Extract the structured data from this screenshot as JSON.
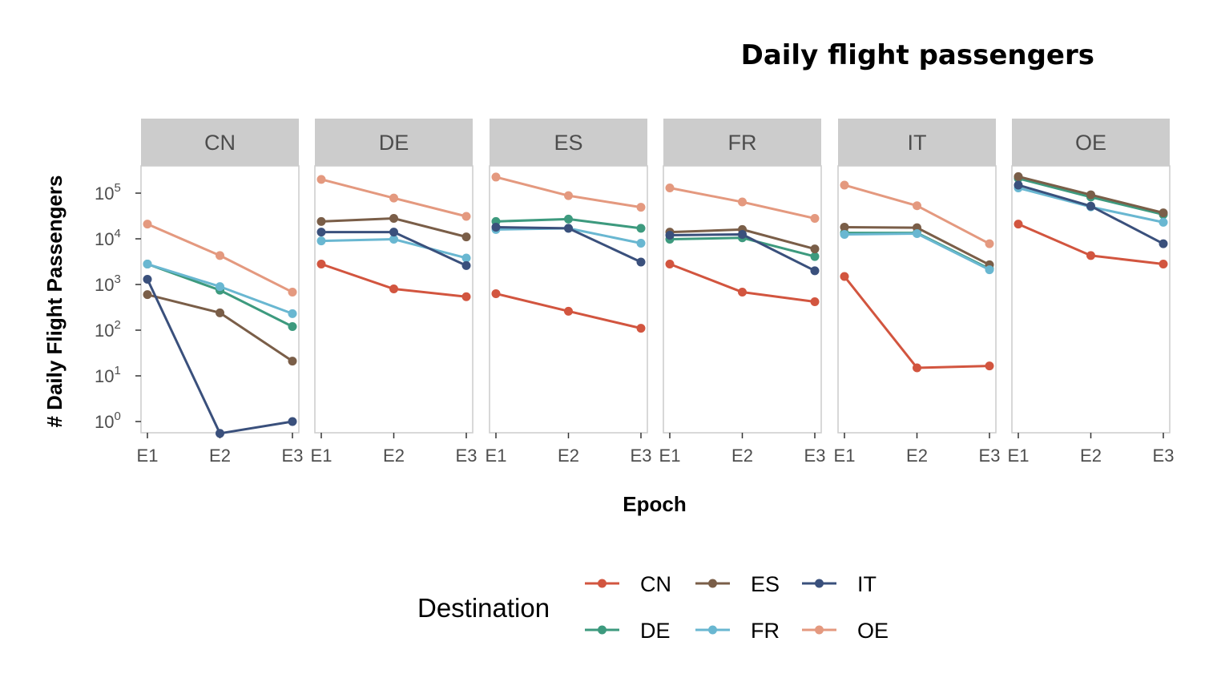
{
  "chart_data": {
    "type": "line",
    "title": "Daily flight passengers",
    "xlabel": "Epoch",
    "ylabel": "# Daily Flight Passengers",
    "y_scale": "log10",
    "ylim": [
      0.55,
      500000
    ],
    "y_ticks": [
      1,
      10,
      100,
      1000,
      10000,
      100000
    ],
    "y_tick_base": "10",
    "y_tick_exponents": [
      "0",
      "1",
      "2",
      "3",
      "4",
      "5"
    ],
    "categories": [
      "E1",
      "E2",
      "E3"
    ],
    "legend_title": "Destination",
    "legend_position": "bottom",
    "grid": false,
    "colors": {
      "CN": "#d2553f",
      "DE": "#3d9a7e",
      "ES": "#7a5e48",
      "FR": "#69b7d1",
      "IT": "#3a507c",
      "OE": "#e4997f"
    },
    "legend_order": [
      "CN",
      "DE",
      "ES",
      "FR",
      "IT",
      "OE"
    ],
    "panels": [
      {
        "name": "CN",
        "series": [
          {
            "name": "CN",
            "values": [
              null,
              null,
              null
            ]
          },
          {
            "name": "DE",
            "values": [
              2800,
              750,
              120
            ]
          },
          {
            "name": "ES",
            "values": [
              600,
              240,
              21
            ]
          },
          {
            "name": "FR",
            "values": [
              2800,
              900,
              230
            ]
          },
          {
            "name": "IT",
            "values": [
              1300,
              0.55,
              1.0
            ]
          },
          {
            "name": "OE",
            "values": [
              21000,
              4300,
              680
            ]
          }
        ]
      },
      {
        "name": "DE",
        "series": [
          {
            "name": "CN",
            "values": [
              2800,
              800,
              540
            ]
          },
          {
            "name": "DE",
            "values": [
              null,
              null,
              null
            ]
          },
          {
            "name": "ES",
            "values": [
              24000,
              28000,
              11000
            ]
          },
          {
            "name": "FR",
            "values": [
              9000,
              9800,
              3800
            ]
          },
          {
            "name": "IT",
            "values": [
              14000,
              14000,
              2600
            ]
          },
          {
            "name": "OE",
            "values": [
              200000,
              78000,
              31000
            ]
          }
        ]
      },
      {
        "name": "ES",
        "series": [
          {
            "name": "CN",
            "values": [
              630,
              260,
              110
            ]
          },
          {
            "name": "DE",
            "values": [
              24000,
              27000,
              17000
            ]
          },
          {
            "name": "ES",
            "values": [
              null,
              null,
              null
            ]
          },
          {
            "name": "FR",
            "values": [
              16000,
              17000,
              8000
            ]
          },
          {
            "name": "IT",
            "values": [
              18000,
              17000,
              3100
            ]
          },
          {
            "name": "OE",
            "values": [
              225000,
              88000,
              49000
            ]
          }
        ]
      },
      {
        "name": "FR",
        "series": [
          {
            "name": "CN",
            "values": [
              2800,
              680,
              420
            ]
          },
          {
            "name": "DE",
            "values": [
              9800,
              10500,
              4100
            ]
          },
          {
            "name": "ES",
            "values": [
              14000,
              16000,
              6000
            ]
          },
          {
            "name": "FR",
            "values": [
              null,
              null,
              null
            ]
          },
          {
            "name": "IT",
            "values": [
              12000,
              12500,
              2000
            ]
          },
          {
            "name": "OE",
            "values": [
              130000,
              64000,
              28000
            ]
          }
        ]
      },
      {
        "name": "IT",
        "series": [
          {
            "name": "CN",
            "values": [
              1500,
              15,
              16.5
            ]
          },
          {
            "name": "DE",
            "values": [
              13500,
              13500,
              2200
            ]
          },
          {
            "name": "ES",
            "values": [
              18000,
              17500,
              2700
            ]
          },
          {
            "name": "FR",
            "values": [
              12500,
              13000,
              2100
            ]
          },
          {
            "name": "IT",
            "values": [
              null,
              null,
              null
            ]
          },
          {
            "name": "OE",
            "values": [
              150000,
              53000,
              7800
            ]
          }
        ]
      },
      {
        "name": "OE",
        "series": [
          {
            "name": "CN",
            "values": [
              21000,
              4300,
              2800
            ]
          },
          {
            "name": "DE",
            "values": [
              210000,
              82000,
              34000
            ]
          },
          {
            "name": "ES",
            "values": [
              230000,
              92000,
              37000
            ]
          },
          {
            "name": "FR",
            "values": [
              130000,
              50000,
              23000
            ]
          },
          {
            "name": "IT",
            "values": [
              150000,
              52000,
              7800
            ]
          },
          {
            "name": "OE",
            "values": [
              null,
              null,
              null
            ]
          }
        ]
      }
    ]
  }
}
